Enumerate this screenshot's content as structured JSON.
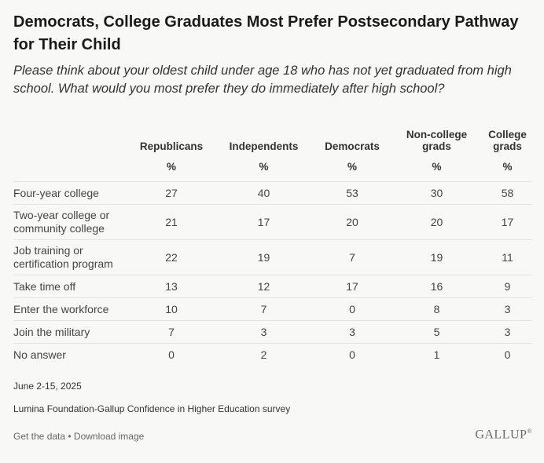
{
  "title": "Democrats, College Graduates Most Prefer Postsecondary Pathway for Their Child",
  "subtitle": "Please think about your oldest child under age 18 who has not yet graduated from high school. What would you most prefer they do immediately after high school?",
  "chart_data": {
    "type": "table",
    "columns": [
      "Republicans",
      "Independents",
      "Democrats",
      "Non-college grads",
      "College grads"
    ],
    "units": [
      "%",
      "%",
      "%",
      "%",
      "%"
    ],
    "rows": [
      {
        "label": "Four-year college",
        "values": [
          "27",
          "40",
          "53",
          "30",
          "58"
        ]
      },
      {
        "label": "Two-year college or community college",
        "values": [
          "21",
          "17",
          "20",
          "20",
          "17"
        ]
      },
      {
        "label": "Job training or certification program",
        "values": [
          "22",
          "19",
          "7",
          "19",
          "11"
        ]
      },
      {
        "label": "Take time off",
        "values": [
          "13",
          "12",
          "17",
          "16",
          "9"
        ]
      },
      {
        "label": "Enter the workforce",
        "values": [
          "10",
          "7",
          "0",
          "8",
          "3"
        ]
      },
      {
        "label": "Join the military",
        "values": [
          "7",
          "3",
          "3",
          "5",
          "3"
        ]
      },
      {
        "label": "No answer",
        "values": [
          "0",
          "2",
          "0",
          "1",
          "0"
        ]
      }
    ]
  },
  "footer": {
    "date": "June 2-15, 2025",
    "source": "Lumina Foundation-Gallup Confidence in Higher Education survey",
    "get_data": "Get the data",
    "separator": " • ",
    "download": "Download image",
    "brand": "GALLUP",
    "brand_mark": "®"
  }
}
